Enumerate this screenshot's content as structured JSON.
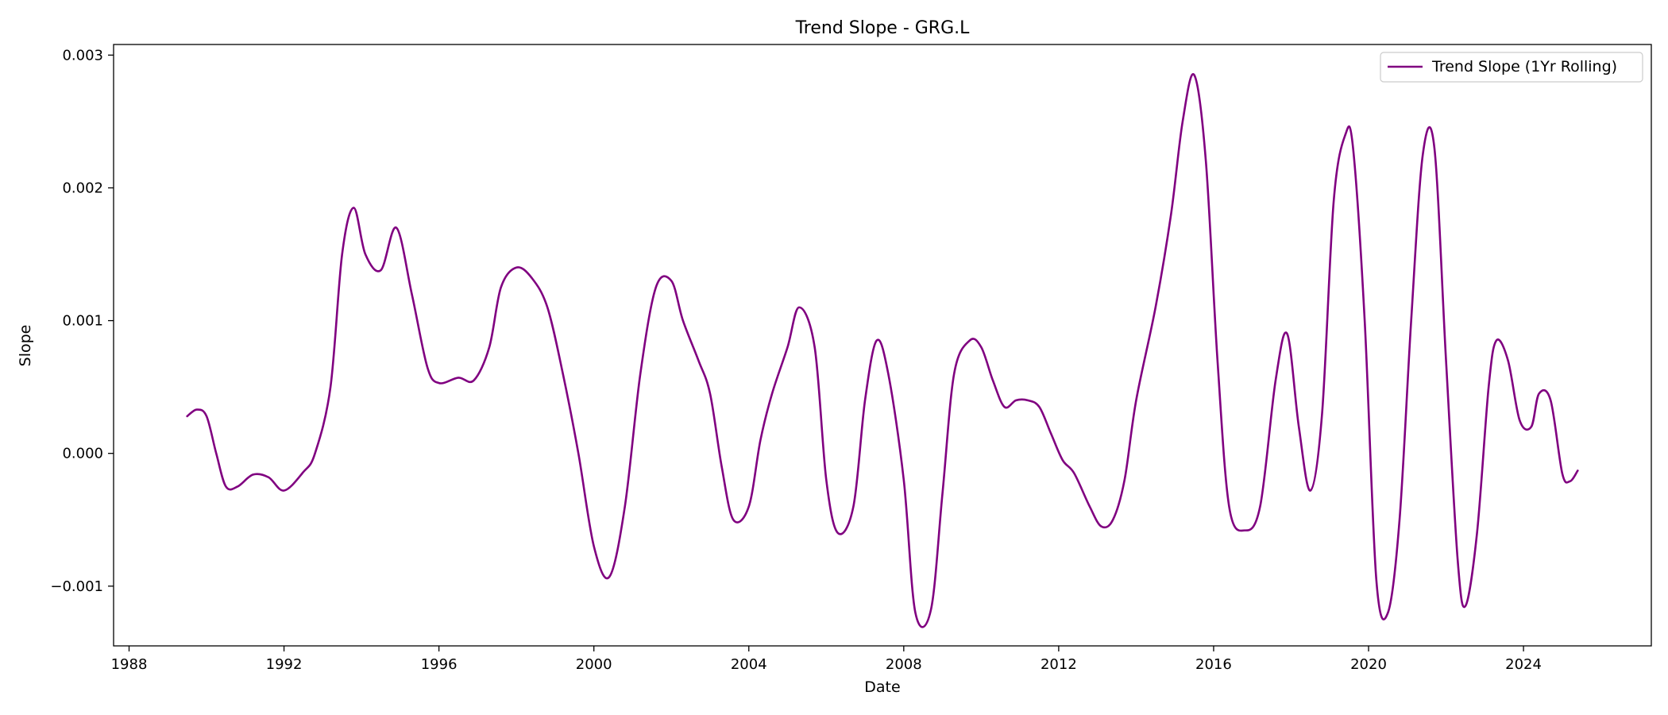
{
  "colors": {
    "series": "#800080",
    "axes": "#000000",
    "background": "#ffffff",
    "legend_border": "#cccccc"
  },
  "chart_data": {
    "type": "line",
    "title": "Trend Slope - GRG.L",
    "xlabel": "Date",
    "ylabel": "Slope",
    "x_type": "year",
    "xlim": [
      1987.6,
      2027.3
    ],
    "ylim": [
      -0.00145,
      0.00308
    ],
    "x_ticks": [
      1988,
      1992,
      1996,
      2000,
      2004,
      2008,
      2012,
      2016,
      2020,
      2024
    ],
    "x_tick_labels": [
      "1988",
      "1992",
      "1996",
      "2000",
      "2004",
      "2008",
      "2012",
      "2016",
      "2020",
      "2024"
    ],
    "y_ticks": [
      -0.001,
      0,
      0.001,
      0.002,
      0.003
    ],
    "y_tick_labels": [
      "−0.001",
      "0.000",
      "0.001",
      "0.002",
      "0.003"
    ],
    "grid": false,
    "legend_position": "top-right",
    "series": [
      {
        "name": "Trend Slope (1Yr Rolling)",
        "color": "#800080",
        "x": [
          1989.5,
          1989.75,
          1990.0,
          1990.25,
          1990.5,
          1990.8,
          1991.2,
          1991.6,
          1992.0,
          1992.5,
          1992.8,
          1993.2,
          1993.5,
          1993.8,
          1994.1,
          1994.5,
          1994.9,
          1995.3,
          1995.7,
          1996.0,
          1996.5,
          1996.9,
          1997.3,
          1997.6,
          1998.0,
          1998.4,
          1998.8,
          1999.2,
          1999.6,
          2000.0,
          2000.4,
          2000.8,
          2001.2,
          2001.6,
          2002.0,
          2002.3,
          2002.7,
          2003.0,
          2003.3,
          2003.6,
          2004.0,
          2004.3,
          2004.6,
          2005.0,
          2005.3,
          2005.7,
          2006.0,
          2006.3,
          2006.7,
          2007.0,
          2007.3,
          2007.6,
          2008.0,
          2008.3,
          2008.7,
          2009.0,
          2009.3,
          2009.7,
          2010.0,
          2010.3,
          2010.6,
          2010.9,
          2011.2,
          2011.5,
          2011.8,
          2012.1,
          2012.4,
          2012.8,
          2013.1,
          2013.4,
          2013.7,
          2014.0,
          2014.5,
          2014.9,
          2015.2,
          2015.5,
          2015.8,
          2016.1,
          2016.4,
          2016.8,
          2017.2,
          2017.6,
          2017.9,
          2018.2,
          2018.5,
          2018.8,
          2019.1,
          2019.4,
          2019.6,
          2019.9,
          2020.2,
          2020.5,
          2020.8,
          2021.1,
          2021.4,
          2021.7,
          2022.0,
          2022.3,
          2022.5,
          2022.8,
          2023.1,
          2023.3,
          2023.6,
          2023.9,
          2024.2,
          2024.4,
          2024.7,
          2025.0,
          2025.2,
          2025.4
        ],
        "y": [
          0.00028,
          0.00033,
          0.00028,
          0.0,
          -0.00025,
          -0.00025,
          -0.00016,
          -0.00018,
          -0.00028,
          -0.00014,
          0.0,
          0.0005,
          0.0015,
          0.00185,
          0.0015,
          0.00138,
          0.0017,
          0.0012,
          0.00065,
          0.00053,
          0.00057,
          0.00055,
          0.0008,
          0.00125,
          0.0014,
          0.00132,
          0.0011,
          0.0006,
          0.0,
          -0.0007,
          -0.00093,
          -0.0004,
          0.0006,
          0.00125,
          0.0013,
          0.001,
          0.0007,
          0.00045,
          -0.0001,
          -0.0005,
          -0.0004,
          0.0001,
          0.00045,
          0.0008,
          0.0011,
          0.0008,
          -0.0002,
          -0.0006,
          -0.0004,
          0.0004,
          0.00085,
          0.0006,
          -0.0002,
          -0.0012,
          -0.00118,
          -0.0003,
          0.0006,
          0.00085,
          0.0008,
          0.00055,
          0.00035,
          0.0004,
          0.0004,
          0.00035,
          0.00015,
          -5e-05,
          -0.00015,
          -0.0004,
          -0.00055,
          -0.0005,
          -0.0002,
          0.0004,
          0.0011,
          0.0018,
          0.0025,
          0.00285,
          0.0022,
          0.0007,
          -0.0004,
          -0.00058,
          -0.0004,
          0.00055,
          0.0009,
          0.0002,
          -0.00028,
          0.0003,
          0.0019,
          0.0024,
          0.0023,
          0.001,
          -0.00095,
          -0.0012,
          -0.0005,
          0.001,
          0.00225,
          0.0023,
          0.0007,
          -0.0008,
          -0.00115,
          -0.0006,
          0.0005,
          0.00085,
          0.0007,
          0.00025,
          0.0002,
          0.00045,
          0.0004,
          -0.00015,
          -0.00021,
          -0.00013
        ]
      }
    ]
  }
}
